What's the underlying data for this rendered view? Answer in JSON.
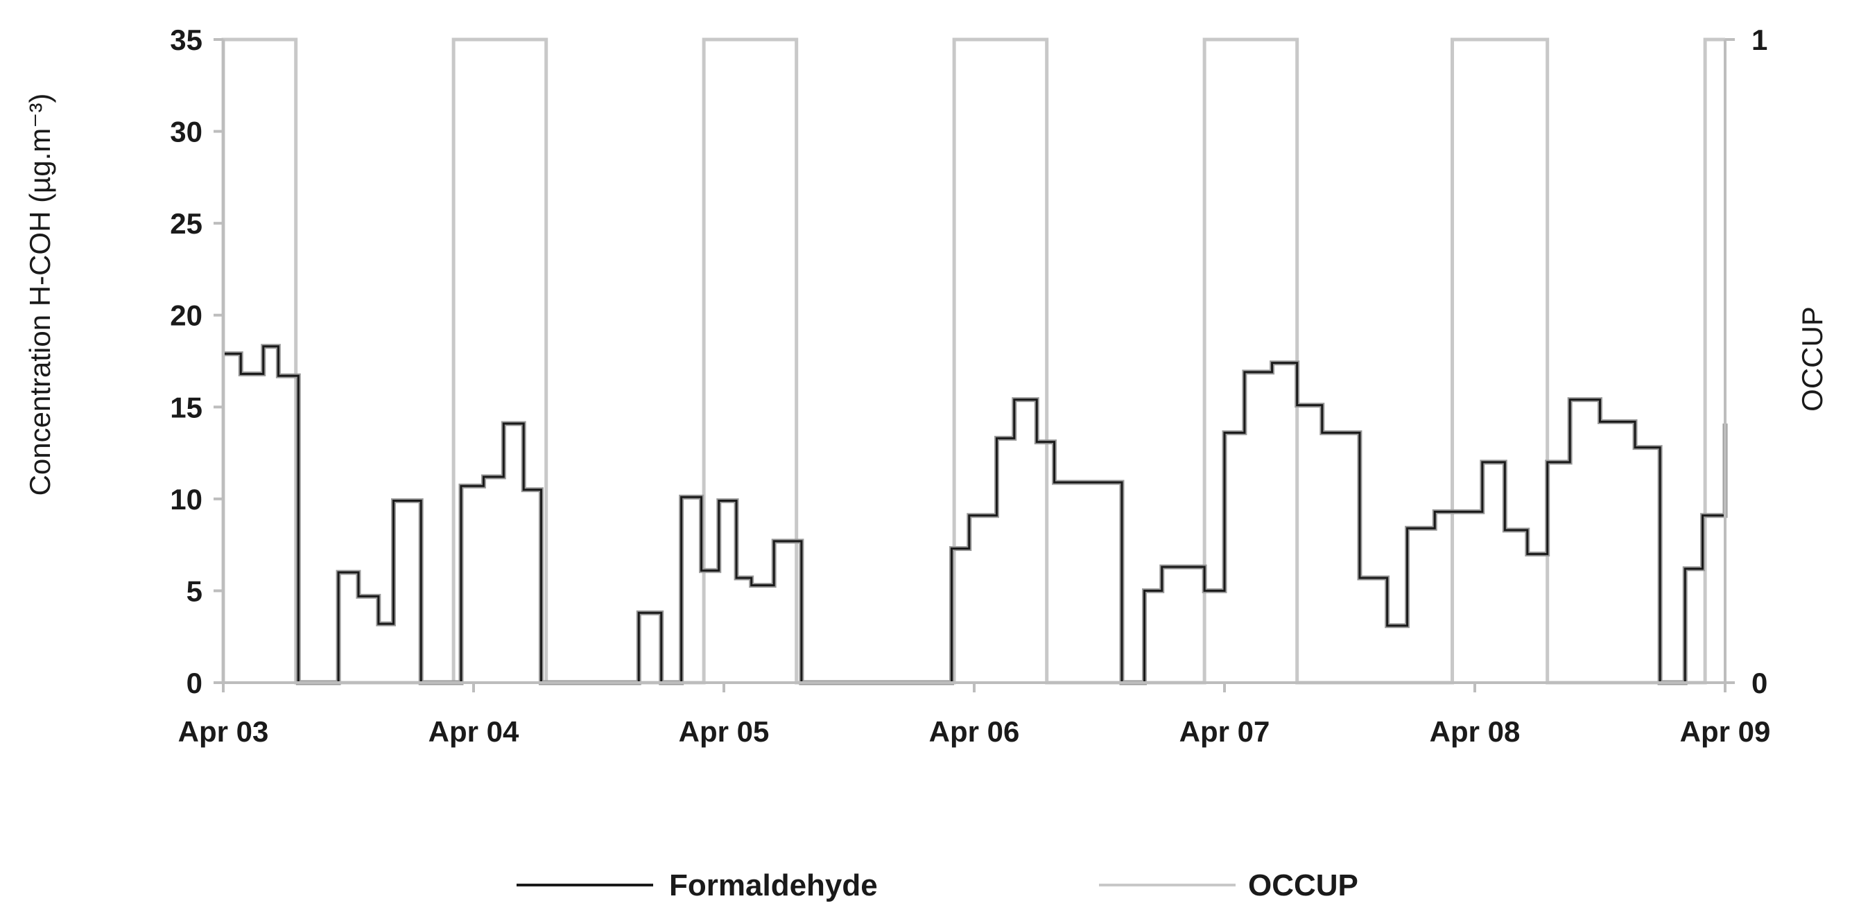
{
  "chart_data": {
    "type": "line",
    "x_unit": "day",
    "x_ticks": [
      "Apr 03",
      "Apr 04",
      "Apr 05",
      "Apr 06",
      "Apr 07",
      "Apr 08",
      "Apr 09"
    ],
    "xlim": [
      0,
      6
    ],
    "ylabel": "Concentration H-COH (µg.m⁻³)",
    "ylim": [
      0,
      35
    ],
    "y_ticks": [
      "0",
      "5",
      "10",
      "15",
      "20",
      "25",
      "30",
      "35"
    ],
    "y2label": "OCCUP",
    "y2lim": [
      0,
      1
    ],
    "y2_ticks": [
      "0",
      "1"
    ],
    "grid": false,
    "legend_position": "bottom",
    "series": [
      {
        "name": "Formaldehyde",
        "axis": "left",
        "color": "#1a1a1a",
        "step": true,
        "x": [
          0.0,
          0.07,
          0.16,
          0.22,
          0.3,
          0.46,
          0.54,
          0.62,
          0.68,
          0.79,
          0.95,
          1.04,
          1.12,
          1.2,
          1.27,
          1.66,
          1.75,
          1.83,
          1.91,
          1.98,
          2.05,
          2.11,
          2.2,
          2.31,
          2.43,
          2.5,
          2.91,
          2.98,
          3.09,
          3.16,
          3.25,
          3.32,
          3.59,
          3.68,
          3.75,
          3.92,
          4.0,
          4.08,
          4.19,
          4.29,
          4.39,
          4.54,
          4.65,
          4.73,
          4.84,
          5.03,
          5.12,
          5.21,
          5.29,
          5.38,
          5.5,
          5.64,
          5.74,
          5.84,
          5.91,
          6.0
        ],
        "y": [
          17.9,
          16.8,
          18.3,
          16.7,
          0,
          6.0,
          4.7,
          3.2,
          9.9,
          0,
          10.7,
          11.2,
          14.1,
          10.5,
          0,
          3.8,
          0,
          10.1,
          6.1,
          9.9,
          5.7,
          5.3,
          7.7,
          0,
          0,
          0,
          7.3,
          9.1,
          13.3,
          15.4,
          13.1,
          10.9,
          0,
          5.0,
          6.3,
          5.0,
          13.6,
          16.9,
          17.4,
          15.1,
          13.6,
          5.7,
          3.1,
          8.4,
          9.3,
          12.0,
          8.3,
          7.0,
          12.0,
          15.4,
          14.2,
          12.8,
          0,
          6.2,
          9.1,
          14.1
        ]
      },
      {
        "name": "OCCUP",
        "axis": "right",
        "color": "#c8c8c8",
        "step": true,
        "on_intervals": [
          [
            0.0,
            0.29
          ],
          [
            0.92,
            1.29
          ],
          [
            1.92,
            2.29
          ],
          [
            2.92,
            3.29
          ],
          [
            3.92,
            4.29
          ],
          [
            4.91,
            5.29
          ],
          [
            5.92,
            6.0
          ]
        ]
      }
    ]
  }
}
